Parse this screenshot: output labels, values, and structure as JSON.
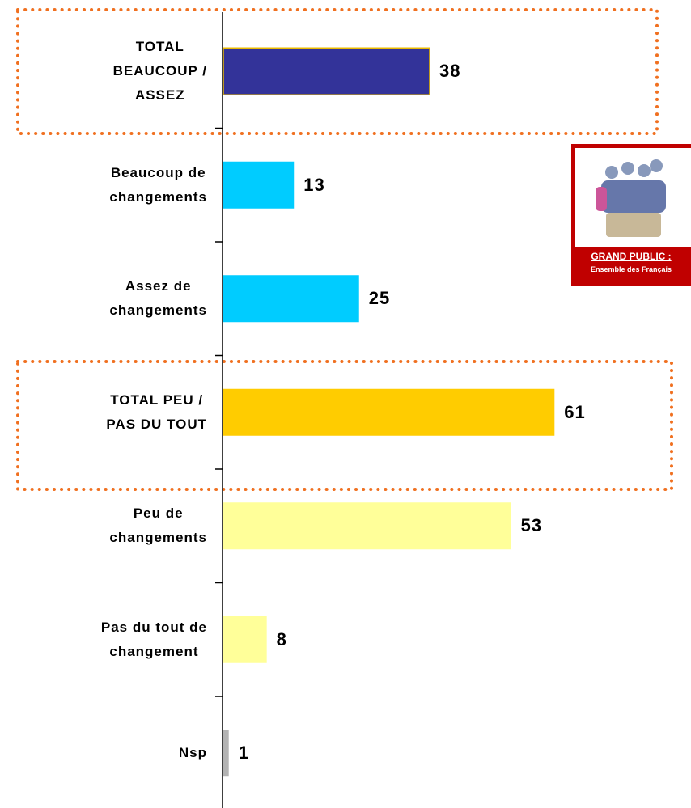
{
  "chart_data": {
    "type": "bar",
    "categories": [
      "TOTAL\nBEAUCOUP /\nASSEZ",
      "Beaucoup de\nchangements",
      "Assez de\nchangements",
      "TOTAL PEU /\nPAS DU TOUT",
      "Peu de\nchangements",
      "Pas du tout de\nchangement",
      "Nsp"
    ],
    "values": [
      38,
      13,
      25,
      61,
      53,
      8,
      1
    ],
    "colors": [
      "#333399",
      "#00ccff",
      "#00ccff",
      "#ffcc00",
      "#ffff99",
      "#ffff99",
      "#b3b3b3"
    ]
  },
  "badge": {
    "title": "GRAND PUBLIC :",
    "subtitle": "Ensemble des Français"
  }
}
